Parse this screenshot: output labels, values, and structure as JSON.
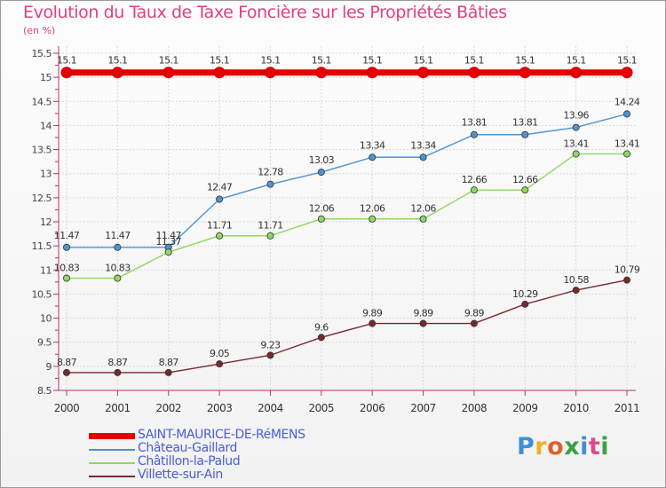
{
  "header": {
    "title": "Evolution du Taux de Taxe Foncière sur les Propriétés Bâties",
    "unit": "(en %)"
  },
  "logo": {
    "text": "Proxiti",
    "colors": [
      "#3d8fd8",
      "#f0b020",
      "#e0602a",
      "#3aa043",
      "#3d8fd8",
      "#e04a8a",
      "#3aa043"
    ]
  },
  "chart_data": {
    "type": "line",
    "title": "Evolution du Taux de Taxe Foncière sur les Propriétés Bâties",
    "ylabel": "(en %)",
    "xlabel": "",
    "x": [
      "2000",
      "2001",
      "2002",
      "2003",
      "2004",
      "2005",
      "2006",
      "2007",
      "2008",
      "2009",
      "2010",
      "2011"
    ],
    "ylim": [
      8.5,
      15.5
    ],
    "yticks": [
      "8.5",
      "9",
      "9.5",
      "10",
      "10.5",
      "11",
      "11.5",
      "12",
      "12.5",
      "13",
      "13.5",
      "14",
      "14.5",
      "15",
      "15.5"
    ],
    "grid": true,
    "legend_position": "bottom-left",
    "series": [
      {
        "name": "SAINT-MAURICE-DE-RéMENS",
        "color": "#e60000",
        "values": [
          15.1,
          15.1,
          15.1,
          15.1,
          15.1,
          15.1,
          15.1,
          15.1,
          15.1,
          15.1,
          15.1,
          15.1
        ],
        "labels": [
          "15.1",
          "15.1",
          "15.1",
          "15.1",
          "15.1",
          "15.1",
          "15.1",
          "15.1",
          "15.1",
          "15.1",
          "15.1",
          "15.1"
        ]
      },
      {
        "name": "Château-Gaillard",
        "color": "#4f94d0",
        "values": [
          11.47,
          11.47,
          11.47,
          12.47,
          12.78,
          13.03,
          13.34,
          13.34,
          13.81,
          13.81,
          13.96,
          14.24
        ],
        "labels": [
          "11.47",
          "11.47",
          "11.47",
          "12.47",
          "12.78",
          "13.03",
          "13.34",
          "13.34",
          "13.81",
          "13.81",
          "13.96",
          "14.24"
        ]
      },
      {
        "name": "Châtillon-la-Palud",
        "color": "#8ed860",
        "values": [
          10.83,
          10.83,
          11.37,
          11.71,
          11.71,
          12.06,
          12.06,
          12.06,
          12.66,
          12.66,
          13.41,
          13.41
        ],
        "labels": [
          "10.83",
          "10.83",
          "11.37",
          "11.71",
          "11.71",
          "12.06",
          "12.06",
          "12.06",
          "12.66",
          "12.66",
          "13.41",
          "13.41"
        ]
      },
      {
        "name": "Villette-sur-Ain",
        "color": "#7a2830",
        "values": [
          8.87,
          8.87,
          8.87,
          9.05,
          9.23,
          9.6,
          9.89,
          9.89,
          9.89,
          10.29,
          10.58,
          10.79
        ],
        "labels": [
          "8.87",
          "8.87",
          "8.87",
          "9.05",
          "9.23",
          "9.6",
          "9.89",
          "9.89",
          "9.89",
          "10.29",
          "10.58",
          "10.79"
        ]
      }
    ]
  }
}
